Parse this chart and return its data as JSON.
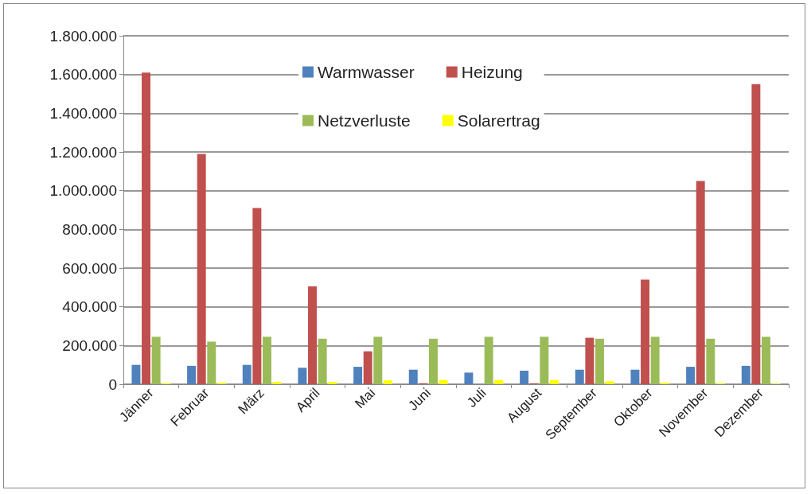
{
  "chart_data": {
    "type": "bar",
    "categories": [
      "Jänner",
      "Februar",
      "März",
      "April",
      "Mai",
      "Juni",
      "Juli",
      "August",
      "September",
      "Oktober",
      "November",
      "Dezember"
    ],
    "series": [
      {
        "name": "Warmwasser",
        "color": "#4f81bd",
        "values": [
          100000,
          95000,
          100000,
          85000,
          90000,
          75000,
          60000,
          70000,
          75000,
          75000,
          90000,
          95000
        ]
      },
      {
        "name": "Heizung",
        "color": "#c0504d",
        "values": [
          1610000,
          1190000,
          910000,
          505000,
          170000,
          5000,
          0,
          5000,
          240000,
          540000,
          1050000,
          1550000
        ]
      },
      {
        "name": "Netzverluste",
        "color": "#9bbb59",
        "values": [
          245000,
          220000,
          245000,
          235000,
          245000,
          235000,
          245000,
          245000,
          235000,
          245000,
          235000,
          245000
        ]
      },
      {
        "name": "Solarertrag",
        "color": "#ffff00",
        "values": [
          5000,
          8000,
          12000,
          12000,
          20000,
          22000,
          22000,
          22000,
          15000,
          8000,
          5000,
          3000
        ]
      }
    ],
    "ylim": [
      0,
      1800000
    ],
    "yticks": [
      {
        "value": 0,
        "label": "0"
      },
      {
        "value": 200000,
        "label": "200.000"
      },
      {
        "value": 400000,
        "label": "400.000"
      },
      {
        "value": 600000,
        "label": "600.000"
      },
      {
        "value": 800000,
        "label": "800.000"
      },
      {
        "value": 1000000,
        "label": "1.000.000"
      },
      {
        "value": 1200000,
        "label": "1.200.000"
      },
      {
        "value": 1400000,
        "label": "1.400.000"
      },
      {
        "value": 1600000,
        "label": "1.600.000"
      },
      {
        "value": 1800000,
        "label": "1.800.000"
      }
    ],
    "grid": "y",
    "legend": "top"
  }
}
